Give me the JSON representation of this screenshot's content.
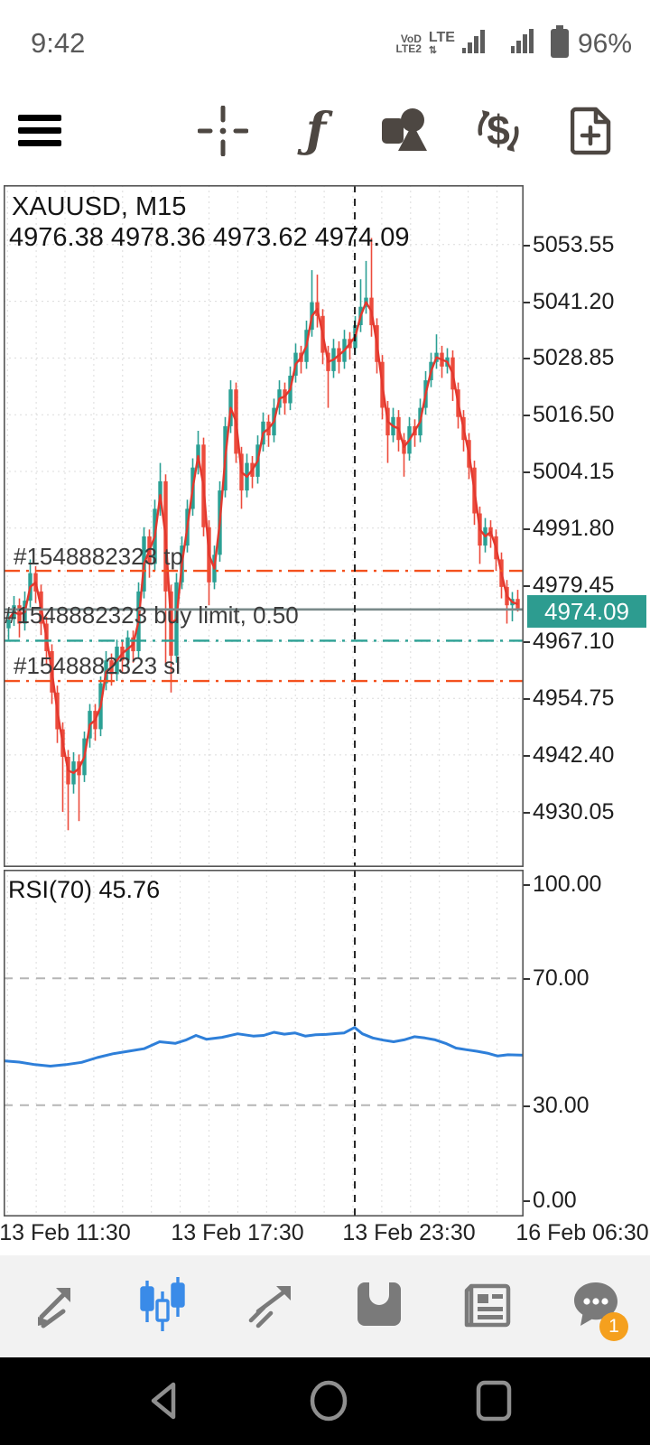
{
  "status": {
    "time": "9:42",
    "volte_rows": [
      "VoD",
      "LTE2"
    ],
    "network": "LTE",
    "battery_pct": "96%"
  },
  "toolbar": {
    "icons": [
      "menu-icon",
      "crosshair-icon",
      "indicators-icon",
      "objects-icon",
      "trade-icon",
      "new-order-icon"
    ],
    "f_glyph": "ƒ",
    "dollar_glyph": "$"
  },
  "chart": {
    "title": "XAUUSD, M15",
    "ohlc_line": "4976.38 4978.36 4973.62 4974.09",
    "current_price": "4974.09"
  },
  "chart_data": [
    {
      "type": "candlestick",
      "title": "XAUUSD, M15",
      "open": 4976.38,
      "high": 4978.36,
      "low": 4973.62,
      "close": 4974.09,
      "price_scale": {
        "top": 5066.5,
        "bottom": 4918.0
      },
      "price_axis": [
        "5053.55",
        "5041.20",
        "5028.85",
        "5016.50",
        "5004.15",
        "4991.80",
        "4979.45",
        "4967.10",
        "4954.75",
        "4942.40",
        "4930.05"
      ],
      "time_axis": [
        "13 Feb 11:30",
        "13 Feb 17:30",
        "13 Feb 23:30",
        "16 Feb 06:30"
      ],
      "time_axis_x_frac": [
        0.118,
        0.45,
        0.779,
        1.113
      ],
      "day_separator_x_frac": 0.6753,
      "grid": {
        "v_start": 4.2,
        "v_step": 31.9
      },
      "colors": {
        "bull": "#2ba094",
        "bear": "#ec4b3c",
        "ma": "#e3382e",
        "price_line": "#7a8a8a",
        "badge": "#2d9c90",
        "grid": "#dcdcdc",
        "separator": "#111111"
      },
      "levels": {
        "tp": {
          "label": "#1548882323 tp",
          "price": 4982.5,
          "color": "#f4511e"
        },
        "buy_limit": {
          "label": "#1548882323 buy limit, 0.50",
          "price": 4967.3,
          "color": "#2ba094"
        },
        "sl": {
          "label": "#1548882323 sl",
          "price": 4958.5,
          "color": "#f4511e"
        },
        "current": {
          "label": "4974.09",
          "price": 4974.09
        }
      },
      "candles": [
        [
          4970,
          4974,
          4967.5,
          4972
        ],
        [
          4972,
          4977,
          4970.5,
          4975
        ],
        [
          4975,
          4976.5,
          4968,
          4971
        ],
        [
          4971,
          4978,
          4969.5,
          4976
        ],
        [
          4976,
          4985,
          4974.5,
          4982
        ],
        [
          4982,
          4983.5,
          4975.5,
          4978
        ],
        [
          4978,
          4979.5,
          4968.5,
          4971
        ],
        [
          4971,
          4972.5,
          4962,
          4965
        ],
        [
          4965,
          4966.5,
          4953.5,
          4956
        ],
        [
          4956,
          4957.5,
          4945,
          4948
        ],
        [
          4948,
          4949.5,
          4930,
          4942
        ],
        [
          4942,
          4943.5,
          4926,
          4936
        ],
        [
          4936,
          4943,
          4934,
          4941
        ],
        [
          4941,
          4942.5,
          4928,
          4938
        ],
        [
          4938,
          4947.5,
          4936.5,
          4946
        ],
        [
          4946,
          4953.5,
          4944,
          4952
        ],
        [
          4952,
          4953.5,
          4945.5,
          4948
        ],
        [
          4948,
          4959.5,
          4946.5,
          4958
        ],
        [
          4958,
          4965,
          4956.5,
          4963
        ],
        [
          4963,
          4964.5,
          4957.5,
          4960
        ],
        [
          4960,
          4967.5,
          4958.5,
          4966
        ],
        [
          4966,
          4967.5,
          4960.5,
          4963
        ],
        [
          4963,
          4969.5,
          4961.5,
          4968
        ],
        [
          4968,
          4969.5,
          4962.5,
          4965
        ],
        [
          4965,
          4980,
          4963.5,
          4978
        ],
        [
          4978,
          4992,
          4976.5,
          4990
        ],
        [
          4990,
          4991.5,
          4981,
          4984
        ],
        [
          4984,
          4998,
          4982.5,
          4996
        ],
        [
          4996,
          5006,
          4994.5,
          5002
        ],
        [
          5002,
          5003.5,
          4962,
          4978
        ],
        [
          4978,
          4979.5,
          4956,
          4964
        ],
        [
          4964,
          4982,
          4962.5,
          4980
        ],
        [
          4980,
          4990,
          4978.5,
          4988
        ],
        [
          4988,
          4998,
          4986.5,
          4996
        ],
        [
          4996,
          5007,
          4994.5,
          5005
        ],
        [
          5005,
          5013,
          5003.5,
          5010
        ],
        [
          5010,
          5011.5,
          4990,
          4992
        ],
        [
          4992,
          4993.5,
          4975,
          4980
        ],
        [
          4980,
          4988,
          4978.5,
          4986
        ],
        [
          4986,
          5002,
          4984.5,
          5000
        ],
        [
          5000,
          5016,
          4998.5,
          5014
        ],
        [
          5014,
          5024,
          5012.5,
          5022
        ],
        [
          5022,
          5023.5,
          5006,
          5008
        ],
        [
          5008,
          5009.5,
          4996,
          5000
        ],
        [
          5000,
          5008,
          4998.5,
          5006
        ],
        [
          5006,
          5007.5,
          5000.5,
          5003
        ],
        [
          5003,
          5012,
          5001.5,
          5010
        ],
        [
          5010,
          5017,
          5008.5,
          5015
        ],
        [
          5015,
          5016.5,
          5009.5,
          5012
        ],
        [
          5012,
          5020,
          5010.5,
          5018
        ],
        [
          5018,
          5024,
          5016.5,
          5022
        ],
        [
          5022,
          5023.5,
          5016.5,
          5019
        ],
        [
          5019,
          5027,
          5017.5,
          5025
        ],
        [
          5025,
          5032,
          5023.5,
          5030
        ],
        [
          5030,
          5031.5,
          5025.5,
          5028
        ],
        [
          5028,
          5037,
          5026.5,
          5035
        ],
        [
          5035,
          5048,
          5033.5,
          5041
        ],
        [
          5041,
          5047,
          5035.5,
          5038
        ],
        [
          5038,
          5039.5,
          5027.5,
          5030
        ],
        [
          5030,
          5031.5,
          5018,
          5026
        ],
        [
          5026,
          5033,
          5024.5,
          5031
        ],
        [
          5031,
          5032.5,
          5025.5,
          5028
        ],
        [
          5028,
          5035,
          5026.5,
          5033
        ],
        [
          5033,
          5034.5,
          5028.5,
          5031
        ],
        [
          5031,
          5038,
          5029.5,
          5036
        ],
        [
          5036,
          5046,
          5034.5,
          5040
        ],
        [
          5040,
          5050,
          5038.5,
          5042
        ],
        [
          5042,
          5055,
          5033.5,
          5036
        ],
        [
          5036,
          5037.5,
          5025.5,
          5028
        ],
        [
          5028,
          5029.5,
          5015.5,
          5018
        ],
        [
          5018,
          5019.5,
          5006,
          5012
        ],
        [
          5012,
          5018,
          5010.5,
          5016
        ],
        [
          5016,
          5017.5,
          5008.5,
          5011
        ],
        [
          5011,
          5012.5,
          5003,
          5008
        ],
        [
          5008,
          5016,
          5006.5,
          5014
        ],
        [
          5014,
          5015.5,
          5009.5,
          5012
        ],
        [
          5012,
          5020,
          5010.5,
          5018
        ],
        [
          5018,
          5026,
          5016.5,
          5024
        ],
        [
          5024,
          5030,
          5022.5,
          5028
        ],
        [
          5028,
          5034,
          5026.5,
          5030
        ],
        [
          5030,
          5031.5,
          5024.5,
          5027
        ],
        [
          5027,
          5031,
          5025.5,
          5029
        ],
        [
          5029,
          5030.5,
          5019.5,
          5022
        ],
        [
          5022,
          5023.5,
          5013.5,
          5016
        ],
        [
          5016,
          5017.5,
          5008.5,
          5011
        ],
        [
          5011,
          5012.5,
          5002.5,
          5005
        ],
        [
          5005,
          5006.5,
          4992.5,
          4995
        ],
        [
          4995,
          4996.5,
          4984,
          4988
        ],
        [
          4988,
          4994,
          4986.5,
          4992
        ],
        [
          4992,
          4993.5,
          4987.5,
          4990
        ],
        [
          4990,
          4991.5,
          4982.5,
          4985
        ],
        [
          4985,
          4986.5,
          4976.5,
          4979
        ],
        [
          4979,
          4980.5,
          4971,
          4975
        ],
        [
          4975,
          4977.9,
          4971.5,
          4976.38
        ],
        [
          4976.38,
          4978.36,
          4973.62,
          4974.09
        ]
      ]
    },
    {
      "type": "line",
      "name": "RSI",
      "label": "RSI(70) 45.76",
      "period": 70,
      "current_value": 45.76,
      "range": [
        0,
        100
      ],
      "level_lines": [
        70,
        30
      ],
      "axis_labels": [
        "100.00",
        "70.00",
        "30.00",
        "0.00"
      ],
      "axis_values": [
        100,
        70,
        30,
        0
      ],
      "color": "#2e7fd9",
      "points": [
        [
          0,
          44.0
        ],
        [
          0.03,
          43.6
        ],
        [
          0.06,
          42.8
        ],
        [
          0.09,
          42.3
        ],
        [
          0.12,
          42.8
        ],
        [
          0.15,
          43.5
        ],
        [
          0.18,
          45.0
        ],
        [
          0.21,
          46.2
        ],
        [
          0.24,
          47.0
        ],
        [
          0.27,
          47.8
        ],
        [
          0.3,
          50.0
        ],
        [
          0.33,
          49.5
        ],
        [
          0.35,
          50.5
        ],
        [
          0.37,
          52.0
        ],
        [
          0.39,
          50.8
        ],
        [
          0.42,
          51.4
        ],
        [
          0.45,
          52.5
        ],
        [
          0.48,
          51.8
        ],
        [
          0.5,
          52.0
        ],
        [
          0.52,
          53.0
        ],
        [
          0.54,
          52.4
        ],
        [
          0.56,
          52.8
        ],
        [
          0.58,
          51.8
        ],
        [
          0.6,
          52.2
        ],
        [
          0.62,
          52.3
        ],
        [
          0.64,
          52.6
        ],
        [
          0.655,
          52.8
        ],
        [
          0.675,
          54.5
        ],
        [
          0.69,
          52.5
        ],
        [
          0.71,
          51.2
        ],
        [
          0.73,
          50.5
        ],
        [
          0.75,
          50.0
        ],
        [
          0.77,
          50.6
        ],
        [
          0.79,
          51.6
        ],
        [
          0.81,
          51.2
        ],
        [
          0.83,
          50.6
        ],
        [
          0.85,
          49.5
        ],
        [
          0.87,
          48.0
        ],
        [
          0.89,
          47.5
        ],
        [
          0.91,
          47.0
        ],
        [
          0.93,
          46.4
        ],
        [
          0.95,
          45.5
        ],
        [
          0.97,
          45.9
        ],
        [
          1.0,
          45.76
        ]
      ]
    }
  ],
  "bottom_nav": {
    "items": [
      "quotes",
      "charts",
      "trade",
      "history",
      "news",
      "messages"
    ],
    "active": "charts",
    "active_color": "#3a8be8",
    "inactive_color": "#7a7a7a",
    "message_badge": "1",
    "badge_color": "#f5a01e"
  },
  "android_nav": {
    "items": [
      "back",
      "home",
      "recents"
    ]
  }
}
